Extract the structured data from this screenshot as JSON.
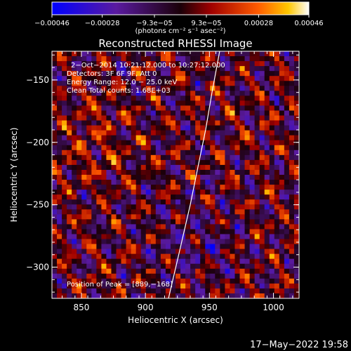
{
  "chart_data": {
    "type": "heatmap",
    "title": "Reconstructed RHESSI Image",
    "xlabel": "Heliocentric X (arcsec)",
    "ylabel": "Heliocentric Y (arcsec)",
    "xlim": [
      827,
      1020
    ],
    "ylim": [
      -325,
      -127
    ],
    "x_ticks": [
      850,
      900,
      950,
      1000
    ],
    "y_ticks": [
      -150,
      -200,
      -250,
      -300
    ],
    "x_tick_labels": [
      "850",
      "900",
      "950",
      "1000"
    ],
    "y_tick_labels": [
      "−150",
      "−200",
      "−250",
      "−300"
    ],
    "colorbar": {
      "range": [
        -0.00046,
        0.00046
      ],
      "ticks": [
        -0.00046,
        -0.00028,
        -9.3e-05,
        9.3e-05,
        0.00028,
        0.00046
      ],
      "tick_labels": [
        "−0.00046",
        "−0.00028",
        "−9.3e−05",
        "9.3e−05",
        "0.00028",
        "0.00046"
      ],
      "unit_label": "(photons cm⁻² s⁻¹ asec⁻²)"
    },
    "annotations": [
      "2−Oct−2014 10:21:12.000 to 10:27:12.000",
      "Detectors: 3F 6F 9F, Att 0",
      "Energy Range: 12.0 − 25.0 keV",
      "Clean     Total counts: 1.68E+03"
    ],
    "peak_label": "Position of Peak = [889,−168]",
    "limb": {
      "x": [
        918,
        926,
        935,
        941,
        947,
        952,
        958
      ],
      "y": [
        -325,
        -290,
        -250,
        -220,
        -190,
        -160,
        -127
      ]
    },
    "colors": {
      "background": "#000000",
      "text": "#ffffff",
      "limb": "#ffffff"
    }
  },
  "footer": {
    "timestamp": "17−May−2022 19:58"
  }
}
